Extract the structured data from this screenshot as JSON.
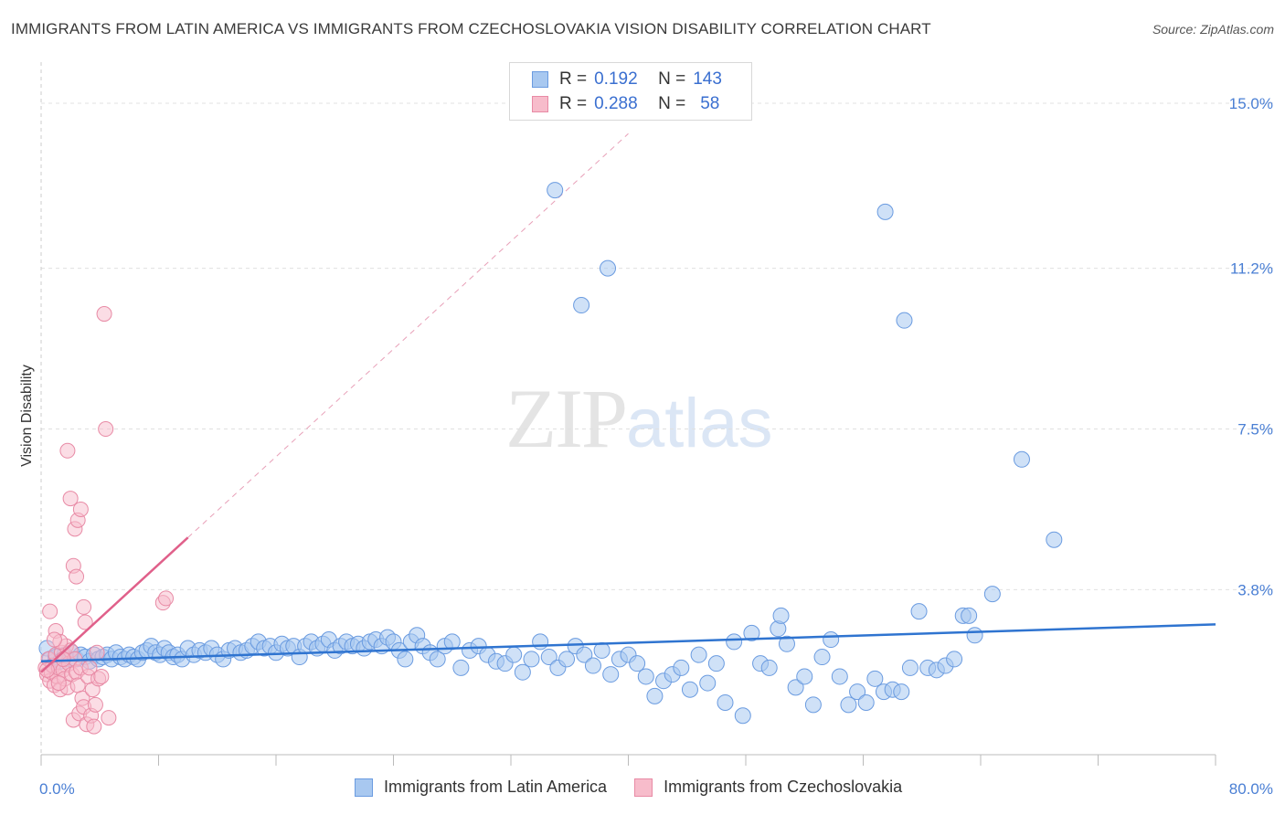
{
  "title": "IMMIGRANTS FROM LATIN AMERICA VS IMMIGRANTS FROM CZECHOSLOVAKIA VISION DISABILITY CORRELATION CHART",
  "source": "Source: ZipAtlas.com",
  "watermark": {
    "zip": "ZIP",
    "atlas": "atlas"
  },
  "legend": {
    "rows": [
      {
        "r_label": "R =",
        "r_value": "0.192",
        "n_label": "N =",
        "n_value": "143",
        "color": "#a8c8f0",
        "border": "#6a9be0"
      },
      {
        "r_label": "R =",
        "r_value": "0.288",
        "n_label": "N =",
        "n_value": "58",
        "color": "#f7bccb",
        "border": "#e88aa5"
      }
    ]
  },
  "bottom_legend": {
    "items": [
      {
        "label": "Immigrants from Latin America",
        "color": "#a8c8f0",
        "border": "#6a9be0"
      },
      {
        "label": "Immigrants from Czechoslovakia",
        "color": "#f7bccb",
        "border": "#e88aa5"
      }
    ]
  },
  "colors": {
    "blue": "#2f74d0",
    "blue_fill": "#a8c8f0",
    "pink": "#e0608a",
    "pink_fill": "#f7bccb",
    "grid": "#e0e0e0",
    "tick_text": "#4a7fd4"
  },
  "chart_data": {
    "type": "scatter",
    "title": "IMMIGRANTS FROM LATIN AMERICA VS IMMIGRANTS FROM CZECHOSLOVAKIA VISION DISABILITY CORRELATION CHART",
    "xlabel": "",
    "ylabel": "Vision Disability",
    "xlim": [
      0,
      80
    ],
    "ylim": [
      0,
      15.8
    ],
    "x_tick_labels": [
      "0.0%",
      "80.0%"
    ],
    "y_ticks": [
      3.8,
      7.5,
      11.2,
      15.0
    ],
    "y_tick_labels": [
      "3.8%",
      "7.5%",
      "11.2%",
      "15.0%"
    ],
    "grid": "horizontal dashed",
    "legend_position": "top-center",
    "series": [
      {
        "name": "Immigrants from Latin America",
        "R": 0.192,
        "N": 143,
        "trend": {
          "x": [
            0,
            80
          ],
          "y": [
            2.15,
            3.0
          ]
        },
        "points": [
          [
            0.4,
            2.45
          ],
          [
            0.6,
            2.2
          ],
          [
            0.8,
            2.05
          ],
          [
            1.0,
            2.25
          ],
          [
            1.3,
            2.15
          ],
          [
            1.6,
            2.3
          ],
          [
            1.9,
            2.2
          ],
          [
            2.1,
            2.35
          ],
          [
            2.4,
            2.2
          ],
          [
            2.7,
            2.3
          ],
          [
            3.0,
            2.25
          ],
          [
            3.3,
            2.15
          ],
          [
            3.6,
            2.3
          ],
          [
            3.9,
            2.2
          ],
          [
            4.2,
            2.25
          ],
          [
            4.5,
            2.3
          ],
          [
            4.8,
            2.2
          ],
          [
            5.1,
            2.35
          ],
          [
            5.4,
            2.25
          ],
          [
            5.7,
            2.2
          ],
          [
            6.0,
            2.3
          ],
          [
            6.3,
            2.25
          ],
          [
            6.6,
            2.2
          ],
          [
            6.9,
            2.35
          ],
          [
            7.2,
            2.4
          ],
          [
            7.5,
            2.5
          ],
          [
            7.8,
            2.35
          ],
          [
            8.1,
            2.3
          ],
          [
            8.4,
            2.45
          ],
          [
            8.7,
            2.35
          ],
          [
            9.0,
            2.25
          ],
          [
            9.3,
            2.3
          ],
          [
            9.6,
            2.2
          ],
          [
            10.0,
            2.45
          ],
          [
            10.4,
            2.3
          ],
          [
            10.8,
            2.4
          ],
          [
            11.2,
            2.35
          ],
          [
            11.6,
            2.45
          ],
          [
            12.0,
            2.3
          ],
          [
            12.4,
            2.2
          ],
          [
            12.8,
            2.4
          ],
          [
            13.2,
            2.45
          ],
          [
            13.6,
            2.35
          ],
          [
            14.0,
            2.4
          ],
          [
            14.4,
            2.5
          ],
          [
            14.8,
            2.6
          ],
          [
            15.2,
            2.45
          ],
          [
            15.6,
            2.5
          ],
          [
            16.0,
            2.35
          ],
          [
            16.4,
            2.55
          ],
          [
            16.8,
            2.45
          ],
          [
            17.2,
            2.5
          ],
          [
            17.6,
            2.25
          ],
          [
            18.0,
            2.5
          ],
          [
            18.4,
            2.6
          ],
          [
            18.8,
            2.45
          ],
          [
            19.2,
            2.55
          ],
          [
            19.6,
            2.65
          ],
          [
            20.0,
            2.4
          ],
          [
            20.4,
            2.5
          ],
          [
            20.8,
            2.6
          ],
          [
            21.2,
            2.5
          ],
          [
            21.6,
            2.55
          ],
          [
            22.0,
            2.45
          ],
          [
            22.4,
            2.6
          ],
          [
            22.8,
            2.65
          ],
          [
            23.2,
            2.5
          ],
          [
            23.6,
            2.7
          ],
          [
            24.0,
            2.6
          ],
          [
            24.4,
            2.4
          ],
          [
            24.8,
            2.2
          ],
          [
            25.2,
            2.6
          ],
          [
            25.6,
            2.75
          ],
          [
            26.0,
            2.5
          ],
          [
            26.5,
            2.35
          ],
          [
            27.0,
            2.2
          ],
          [
            27.5,
            2.5
          ],
          [
            28.0,
            2.6
          ],
          [
            28.6,
            2.0
          ],
          [
            29.2,
            2.4
          ],
          [
            29.8,
            2.5
          ],
          [
            30.4,
            2.3
          ],
          [
            31.0,
            2.15
          ],
          [
            31.6,
            2.1
          ],
          [
            32.2,
            2.3
          ],
          [
            32.8,
            1.9
          ],
          [
            33.4,
            2.2
          ],
          [
            34.0,
            2.6
          ],
          [
            34.6,
            2.25
          ],
          [
            35.2,
            2.0
          ],
          [
            35.8,
            2.2
          ],
          [
            36.4,
            2.5
          ],
          [
            37.0,
            2.3
          ],
          [
            37.6,
            2.05
          ],
          [
            38.2,
            2.4
          ],
          [
            38.8,
            1.85
          ],
          [
            39.4,
            2.2
          ],
          [
            40.0,
            2.3
          ],
          [
            40.6,
            2.1
          ],
          [
            41.2,
            1.8
          ],
          [
            41.8,
            1.35
          ],
          [
            42.4,
            1.7
          ],
          [
            43.0,
            1.85
          ],
          [
            43.6,
            2.0
          ],
          [
            44.2,
            1.5
          ],
          [
            44.8,
            2.3
          ],
          [
            45.4,
            1.65
          ],
          [
            46.0,
            2.1
          ],
          [
            46.6,
            1.2
          ],
          [
            47.2,
            2.6
          ],
          [
            47.8,
            0.9
          ],
          [
            48.4,
            2.8
          ],
          [
            49.0,
            2.1
          ],
          [
            49.6,
            2.0
          ],
          [
            50.2,
            2.9
          ],
          [
            50.8,
            2.55
          ],
          [
            51.4,
            1.55
          ],
          [
            52.0,
            1.8
          ],
          [
            52.6,
            1.15
          ],
          [
            53.2,
            2.25
          ],
          [
            53.8,
            2.65
          ],
          [
            54.4,
            1.8
          ],
          [
            55.0,
            1.15
          ],
          [
            55.6,
            1.45
          ],
          [
            56.2,
            1.2
          ],
          [
            56.8,
            1.75
          ],
          [
            57.4,
            1.45
          ],
          [
            58.0,
            1.5
          ],
          [
            58.6,
            1.45
          ],
          [
            59.2,
            2.0
          ],
          [
            59.8,
            3.3
          ],
          [
            60.4,
            2.0
          ],
          [
            61.0,
            1.95
          ],
          [
            61.6,
            2.05
          ],
          [
            62.2,
            2.2
          ],
          [
            62.8,
            3.2
          ],
          [
            63.2,
            3.2
          ],
          [
            63.6,
            2.75
          ],
          [
            64.8,
            3.7
          ],
          [
            66.8,
            6.8
          ],
          [
            69.0,
            4.95
          ],
          [
            35.0,
            13.0
          ],
          [
            36.8,
            10.35
          ],
          [
            38.6,
            11.2
          ],
          [
            57.5,
            12.5
          ],
          [
            58.8,
            10.0
          ],
          [
            50.4,
            3.2
          ]
        ]
      },
      {
        "name": "Immigrants from Czechoslovakia",
        "R": 0.288,
        "N": 58,
        "trend": {
          "x": [
            0,
            10
          ],
          "y": [
            1.9,
            5.0
          ]
        },
        "points": [
          [
            0.3,
            2.0
          ],
          [
            0.4,
            1.85
          ],
          [
            0.5,
            2.2
          ],
          [
            0.6,
            1.7
          ],
          [
            0.7,
            1.9
          ],
          [
            0.8,
            2.05
          ],
          [
            0.9,
            1.6
          ],
          [
            1.0,
            2.3
          ],
          [
            1.1,
            1.8
          ],
          [
            1.2,
            2.0
          ],
          [
            1.3,
            1.5
          ],
          [
            1.4,
            2.35
          ],
          [
            1.5,
            1.95
          ],
          [
            1.6,
            1.75
          ],
          [
            1.7,
            2.5
          ],
          [
            1.8,
            1.55
          ],
          [
            1.9,
            2.1
          ],
          [
            2.0,
            2.4
          ],
          [
            2.1,
            1.85
          ],
          [
            2.2,
            0.8
          ],
          [
            2.3,
            2.2
          ],
          [
            2.4,
            1.9
          ],
          [
            2.5,
            1.6
          ],
          [
            2.6,
            0.95
          ],
          [
            2.7,
            2.0
          ],
          [
            2.8,
            1.3
          ],
          [
            2.9,
            1.1
          ],
          [
            3.0,
            3.05
          ],
          [
            3.1,
            0.7
          ],
          [
            3.2,
            1.8
          ],
          [
            3.3,
            2.0
          ],
          [
            3.4,
            0.9
          ],
          [
            3.5,
            1.5
          ],
          [
            3.6,
            0.65
          ],
          [
            3.7,
            1.15
          ],
          [
            3.8,
            2.35
          ],
          [
            3.9,
            1.75
          ],
          [
            0.6,
            3.3
          ],
          [
            1.0,
            2.85
          ],
          [
            1.3,
            2.6
          ],
          [
            1.8,
            7.0
          ],
          [
            2.0,
            5.9
          ],
          [
            2.2,
            4.35
          ],
          [
            2.4,
            4.1
          ],
          [
            2.3,
            5.2
          ],
          [
            2.5,
            5.4
          ],
          [
            2.7,
            5.65
          ],
          [
            2.9,
            3.4
          ],
          [
            4.1,
            1.8
          ],
          [
            4.4,
            7.5
          ],
          [
            4.6,
            0.85
          ],
          [
            4.3,
            10.15
          ],
          [
            8.3,
            3.5
          ],
          [
            8.5,
            3.6
          ],
          [
            0.9,
            2.65
          ],
          [
            1.5,
            2.2
          ],
          [
            0.4,
            1.95
          ],
          [
            1.2,
            1.65
          ]
        ]
      }
    ]
  }
}
